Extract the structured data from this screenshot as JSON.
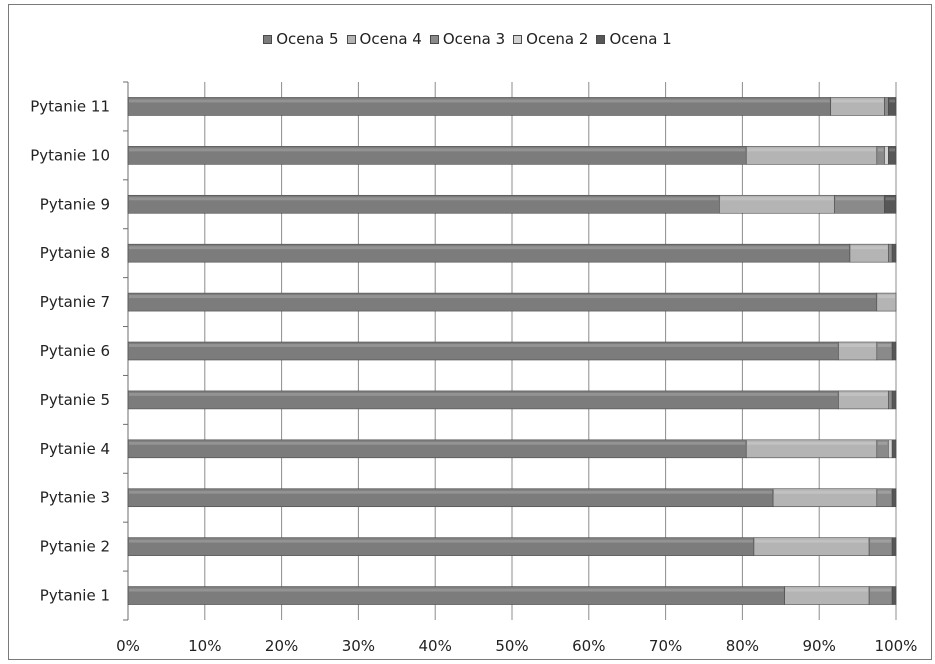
{
  "chart_data": {
    "type": "bar",
    "orientation": "horizontal",
    "stacked": true,
    "percent_stacked": true,
    "categories": [
      "Pytanie 1",
      "Pytanie 2",
      "Pytanie 3",
      "Pytanie 4",
      "Pytanie 5",
      "Pytanie 6",
      "Pytanie 7",
      "Pytanie 8",
      "Pytanie 9",
      "Pytanie 10",
      "Pytanie 11"
    ],
    "series": [
      {
        "name": "Ocena 5",
        "values": [
          85.5,
          81.5,
          84.0,
          80.5,
          92.5,
          92.5,
          97.5,
          94.0,
          77.0,
          80.5,
          91.5
        ],
        "color": "#7c7c7c"
      },
      {
        "name": "Ocena 4",
        "values": [
          11.0,
          15.0,
          13.5,
          17.0,
          6.5,
          5.0,
          2.5,
          5.0,
          15.0,
          17.0,
          7.0
        ],
        "color": "#b4b4b4"
      },
      {
        "name": "Ocena 3",
        "values": [
          3.0,
          3.0,
          2.0,
          1.5,
          0.5,
          2.0,
          0.0,
          0.5,
          6.5,
          1.0,
          0.5
        ],
        "color": "#8a8a8a"
      },
      {
        "name": "Ocena 2",
        "values": [
          0.0,
          0.0,
          0.0,
          0.5,
          0.0,
          0.0,
          0.0,
          0.0,
          0.0,
          0.5,
          0.0
        ],
        "color": "#d2d2d2"
      },
      {
        "name": "Ocena 1",
        "values": [
          0.5,
          0.5,
          0.5,
          0.5,
          0.5,
          0.5,
          0.0,
          0.5,
          1.5,
          1.0,
          1.0
        ],
        "color": "#575757"
      }
    ],
    "xlim": [
      0,
      100
    ],
    "x_ticks": [
      "0%",
      "10%",
      "20%",
      "30%",
      "40%",
      "50%",
      "60%",
      "70%",
      "80%",
      "90%",
      "100%"
    ],
    "grid": "vertical",
    "legend": "top-center",
    "title": "",
    "xlabel": "",
    "ylabel": ""
  }
}
